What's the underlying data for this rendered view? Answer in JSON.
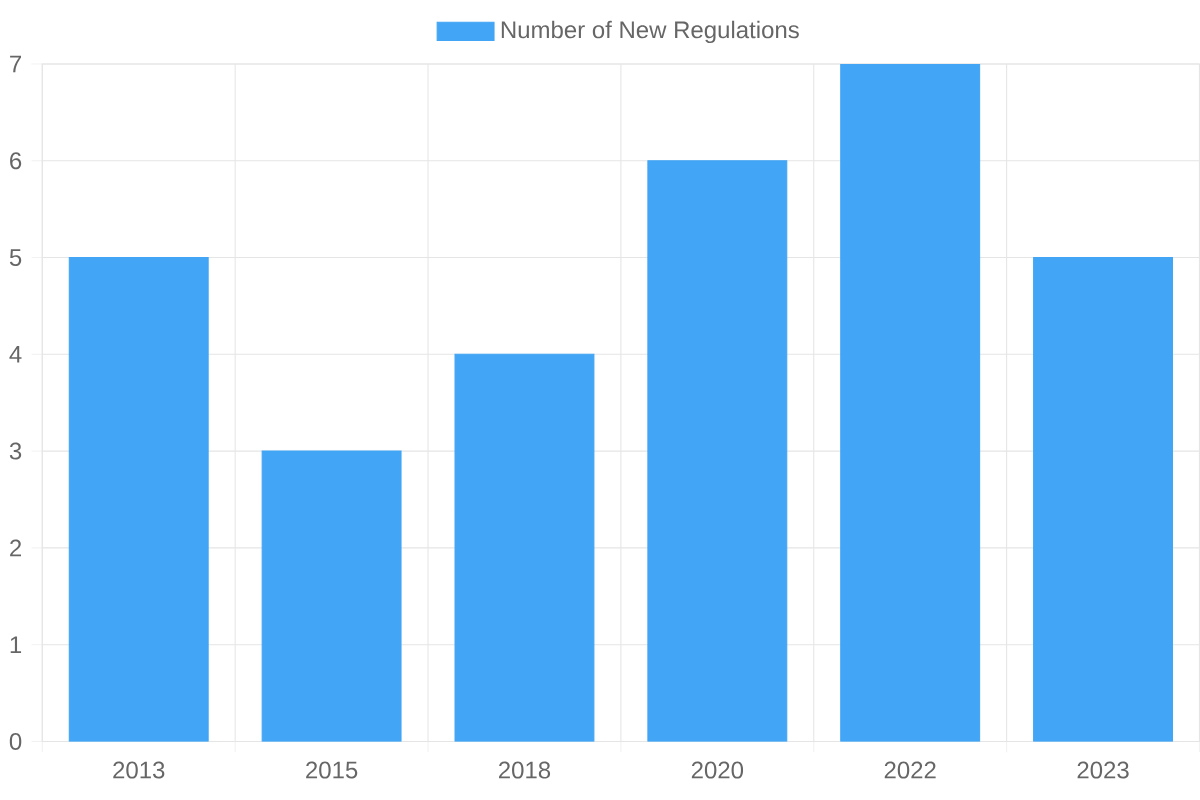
{
  "chart_data": {
    "type": "bar",
    "categories": [
      "2013",
      "2015",
      "2018",
      "2020",
      "2022",
      "2023"
    ],
    "series": [
      {
        "name": "Number of New Regulations",
        "color": "#42a5f5",
        "values": [
          5,
          3,
          4,
          6,
          7,
          5
        ]
      }
    ],
    "ylim": [
      0,
      7
    ],
    "yticks": [
      0,
      1,
      2,
      3,
      4,
      5,
      6,
      7
    ],
    "grid": true,
    "legend": "top"
  }
}
